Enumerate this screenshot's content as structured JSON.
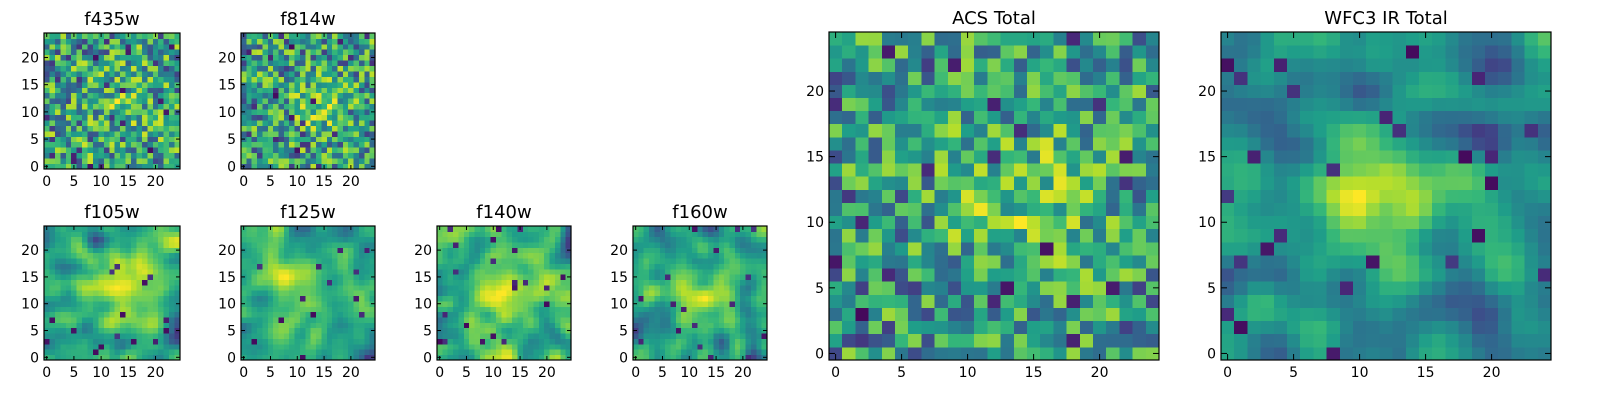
{
  "chart_data": [
    {
      "type": "heatmap",
      "title": "f435w",
      "xlim": [
        -0.5,
        24.5
      ],
      "ylim": [
        -0.5,
        24.5
      ],
      "xticks": [
        0,
        5,
        10,
        15,
        20
      ],
      "yticks": [
        0,
        5,
        10,
        15,
        20
      ],
      "colormap": "viridis",
      "style": "noise",
      "seed": 11,
      "peak": [
        14,
        13
      ],
      "peak_strength": 0.15,
      "sigma": 4
    },
    {
      "type": "heatmap",
      "title": "f814w",
      "xlim": [
        -0.5,
        24.5
      ],
      "ylim": [
        -0.5,
        24.5
      ],
      "xticks": [
        0,
        5,
        10,
        15,
        20
      ],
      "yticks": [
        0,
        5,
        10,
        15,
        20
      ],
      "colormap": "viridis",
      "style": "noise",
      "seed": 23,
      "peak": [
        14,
        11
      ],
      "peak_strength": 0.3,
      "sigma": 3
    },
    {
      "type": "heatmap",
      "title": "f105w",
      "xlim": [
        -0.5,
        24.5
      ],
      "ylim": [
        -0.5,
        24.5
      ],
      "xticks": [
        0,
        5,
        10,
        15,
        20
      ],
      "yticks": [
        0,
        5,
        10,
        15,
        20
      ],
      "colormap": "viridis",
      "style": "smooth",
      "seed": 37,
      "peak": [
        14,
        12
      ],
      "peak_strength": 0.35,
      "sigma": 5
    },
    {
      "type": "heatmap",
      "title": "f125w",
      "xlim": [
        -0.5,
        24.5
      ],
      "ylim": [
        -0.5,
        24.5
      ],
      "xticks": [
        0,
        5,
        10,
        15,
        20
      ],
      "yticks": [
        0,
        5,
        10,
        15,
        20
      ],
      "colormap": "viridis",
      "style": "smooth",
      "seed": 41,
      "peak": [
        11,
        13
      ],
      "peak_strength": 0.3,
      "sigma": 5
    },
    {
      "type": "heatmap",
      "title": "f140w",
      "xlim": [
        -0.5,
        24.5
      ],
      "ylim": [
        -0.5,
        24.5
      ],
      "xticks": [
        0,
        5,
        10,
        15,
        20
      ],
      "yticks": [
        0,
        5,
        10,
        15,
        20
      ],
      "colormap": "viridis",
      "style": "smooth",
      "seed": 53,
      "peak": [
        13,
        11
      ],
      "peak_strength": 0.3,
      "sigma": 5
    },
    {
      "type": "heatmap",
      "title": "f160w",
      "xlim": [
        -0.5,
        24.5
      ],
      "ylim": [
        -0.5,
        24.5
      ],
      "xticks": [
        0,
        5,
        10,
        15,
        20
      ],
      "yticks": [
        0,
        5,
        10,
        15,
        20
      ],
      "colormap": "viridis",
      "style": "smooth",
      "seed": 67,
      "peak": [
        13,
        12
      ],
      "peak_strength": 0.3,
      "sigma": 5
    },
    {
      "type": "heatmap",
      "title": "ACS Total",
      "xlim": [
        -0.5,
        24.5
      ],
      "ylim": [
        -0.5,
        24.5
      ],
      "xticks": [
        0,
        5,
        10,
        15,
        20
      ],
      "yticks": [
        0,
        5,
        10,
        15,
        20
      ],
      "colormap": "viridis",
      "style": "noise",
      "seed": 79,
      "peak": [
        14,
        12
      ],
      "peak_strength": 0.3,
      "sigma": 4
    },
    {
      "type": "heatmap",
      "title": "WFC3 IR Total",
      "xlim": [
        -0.5,
        24.5
      ],
      "ylim": [
        -0.5,
        24.5
      ],
      "xticks": [
        0,
        5,
        10,
        15,
        20
      ],
      "yticks": [
        0,
        5,
        10,
        15,
        20
      ],
      "colormap": "viridis",
      "style": "smooth",
      "seed": 97,
      "peak": [
        12,
        13
      ],
      "peak_strength": 0.55,
      "sigma": 4
    }
  ]
}
